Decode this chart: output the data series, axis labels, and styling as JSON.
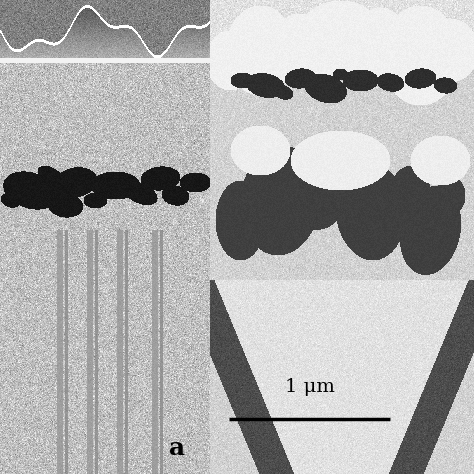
{
  "figsize": [
    4.74,
    4.74
  ],
  "dpi": 100,
  "background_color": "#ffffff",
  "label_a_text": "a",
  "scalebar_text": "1 μm",
  "label_fontsize": 18,
  "scalebar_fontsize": 14
}
